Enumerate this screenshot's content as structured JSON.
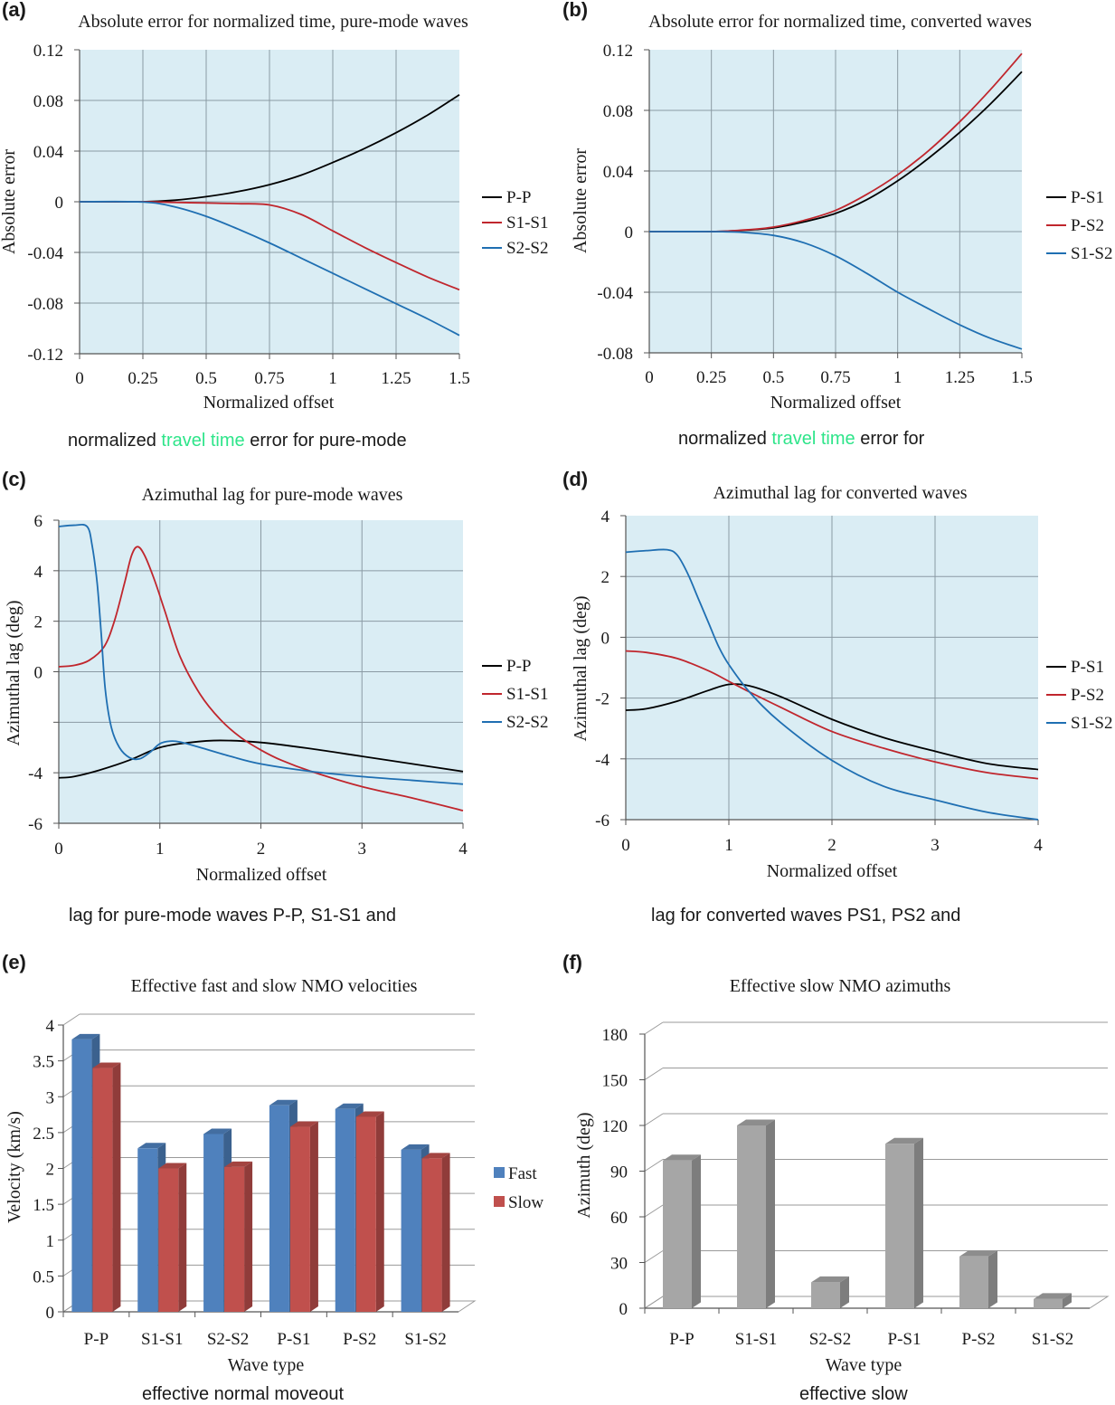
{
  "colors": {
    "plot_bg": "#daedf4",
    "grid": "#8a9aa3",
    "black_series": "#000000",
    "red_series": "#c0262d",
    "blue_series": "#1f6fb2",
    "bar_fast": "#4f81bd",
    "bar_slow": "#c0504d",
    "bar_gray": "#a6a6a6",
    "caption_highlight": "#2ee58a"
  },
  "captions": {
    "a": {
      "before": "normalized ",
      "highlight": "travel time",
      "after": " error for pure-mode"
    },
    "b": {
      "before": "normalized ",
      "highlight": "travel time",
      "after": " error for"
    },
    "c": {
      "text": "lag for pure-mode waves P-P, S1-S1 and"
    },
    "d": {
      "text": "lag for converted waves PS1, PS2 and"
    },
    "e": {
      "text": "effective normal moveout"
    },
    "f": {
      "text": "effective slow"
    }
  },
  "chart_data": [
    {
      "id": "a",
      "panel_label": "(a)",
      "type": "line",
      "title": "Absolute error for normalized time, pure-mode waves",
      "xlabel": "Normalized offset",
      "ylabel": "Absolute error",
      "xlim": [
        0,
        1.5
      ],
      "ylim": [
        -0.12,
        0.12
      ],
      "xticks": [
        "0",
        "0.25",
        "0.5",
        "0.75",
        "1",
        "1.25",
        "1.5"
      ],
      "yticks": [
        "0.12",
        "0.08",
        "0.04",
        "0",
        "-0.04",
        "-0.08",
        "-0.12"
      ],
      "grid": true,
      "legend_position": "right",
      "x": [
        0,
        0.25,
        0.375,
        0.5,
        0.625,
        0.75,
        0.875,
        1.0,
        1.125,
        1.25,
        1.375,
        1.5
      ],
      "series": [
        {
          "name": "P-P",
          "color": "#000000",
          "values": [
            0,
            0,
            0.0012,
            0.004,
            0.008,
            0.0135,
            0.021,
            0.031,
            0.042,
            0.0545,
            0.0685,
            0.0845
          ]
        },
        {
          "name": "S1-S1",
          "color": "#c0262d",
          "values": [
            0,
            0,
            -0.0005,
            -0.001,
            -0.0015,
            -0.0025,
            -0.01,
            -0.023,
            -0.036,
            -0.048,
            -0.0595,
            -0.0695
          ]
        },
        {
          "name": "S2-S2",
          "color": "#1f6fb2",
          "values": [
            0,
            -0.0002,
            -0.004,
            -0.0115,
            -0.0215,
            -0.0325,
            -0.0445,
            -0.0565,
            -0.0685,
            -0.0805,
            -0.0925,
            -0.1055
          ]
        }
      ]
    },
    {
      "id": "b",
      "panel_label": "(b)",
      "type": "line",
      "title": "Absolute error for normalized time, converted waves",
      "xlabel": "Normalized offset",
      "ylabel": "Absolute error",
      "xlim": [
        0,
        1.5
      ],
      "ylim": [
        -0.08,
        0.12
      ],
      "xticks": [
        "0",
        "0.25",
        "0.5",
        "0.75",
        "1",
        "1.25",
        "1.5"
      ],
      "yticks": [
        "0.12",
        "0.08",
        "0.04",
        "0",
        "-0.04",
        "-0.08"
      ],
      "grid": true,
      "legend_position": "right",
      "x": [
        0,
        0.25,
        0.375,
        0.5,
        0.625,
        0.75,
        0.875,
        1.0,
        1.125,
        1.25,
        1.375,
        1.5
      ],
      "series": [
        {
          "name": "P-S1",
          "color": "#000000",
          "values": [
            0,
            0,
            0.0008,
            0.0025,
            0.0065,
            0.012,
            0.021,
            0.0335,
            0.0485,
            0.0655,
            0.0845,
            0.1055
          ]
        },
        {
          "name": "P-S2",
          "color": "#c0262d",
          "values": [
            0,
            0,
            0.001,
            0.003,
            0.0075,
            0.014,
            0.0245,
            0.0375,
            0.0535,
            0.0725,
            0.094,
            0.1175
          ]
        },
        {
          "name": "S1-S2",
          "color": "#1f6fb2",
          "values": [
            0,
            0,
            -0.0005,
            -0.0025,
            -0.0075,
            -0.016,
            -0.0275,
            -0.04,
            -0.051,
            -0.0615,
            -0.0705,
            -0.0775
          ]
        }
      ]
    },
    {
      "id": "c",
      "panel_label": "(c)",
      "type": "line",
      "title": "Azimuthal lag for pure-mode waves",
      "xlabel": "Normalized offset",
      "ylabel": "Azimuthal lag (deg)",
      "xlim": [
        0,
        4
      ],
      "ylim": [
        -6,
        6
      ],
      "xticks": [
        "0",
        "1",
        "2",
        "3",
        "4"
      ],
      "yticks": [
        "6",
        "4",
        "2",
        "0",
        "",
        "-4",
        "-6"
      ],
      "grid": true,
      "legend_position": "right",
      "series": [
        {
          "name": "P-P",
          "color": "#000000",
          "x": [
            0,
            0.15,
            0.4,
            0.7,
            1.0,
            1.3,
            1.6,
            2.0,
            2.5,
            3.0,
            3.5,
            4.0
          ],
          "values": [
            -4.2,
            -4.15,
            -3.9,
            -3.5,
            -3.0,
            -2.8,
            -2.72,
            -2.8,
            -3.05,
            -3.35,
            -3.65,
            -3.95
          ]
        },
        {
          "name": "S1-S1",
          "color": "#c0262d",
          "x": [
            0,
            0.15,
            0.3,
            0.45,
            0.55,
            0.65,
            0.72,
            0.78,
            0.85,
            0.95,
            1.05,
            1.2,
            1.4,
            1.6,
            1.8,
            2.0,
            2.2,
            2.5,
            3.0,
            3.5,
            4.0
          ],
          "values": [
            0.2,
            0.25,
            0.45,
            1.0,
            2.0,
            3.5,
            4.6,
            4.95,
            4.6,
            3.6,
            2.4,
            0.6,
            -0.9,
            -1.9,
            -2.6,
            -3.1,
            -3.5,
            -3.95,
            -4.55,
            -5.0,
            -5.5
          ]
        },
        {
          "name": "S2-S2",
          "color": "#1f6fb2",
          "x": [
            0,
            0.15,
            0.28,
            0.33,
            0.38,
            0.42,
            0.46,
            0.52,
            0.6,
            0.7,
            0.8,
            0.9,
            1.0,
            1.1,
            1.2,
            1.4,
            1.7,
            2.0,
            2.5,
            3.0,
            3.5,
            4.0
          ],
          "values": [
            5.75,
            5.8,
            5.75,
            5.0,
            3.5,
            1.5,
            -0.7,
            -2.2,
            -3.0,
            -3.4,
            -3.45,
            -3.2,
            -2.85,
            -2.75,
            -2.78,
            -3.0,
            -3.35,
            -3.65,
            -3.95,
            -4.15,
            -4.3,
            -4.45
          ]
        }
      ]
    },
    {
      "id": "d",
      "panel_label": "(d)",
      "type": "line",
      "title": "Azimuthal lag for converted waves",
      "xlabel": "Normalized offset",
      "ylabel": "Azimuthal lag (deg)",
      "xlim": [
        0,
        4
      ],
      "ylim": [
        -6,
        4
      ],
      "xticks": [
        "0",
        "1",
        "2",
        "3",
        "4"
      ],
      "yticks": [
        "4",
        "2",
        "0",
        "-2",
        "-4",
        "-6"
      ],
      "grid": true,
      "legend_position": "right",
      "series": [
        {
          "name": "P-S1",
          "color": "#000000",
          "x": [
            0,
            0.2,
            0.5,
            0.8,
            1.0,
            1.2,
            1.5,
            2.0,
            2.5,
            3.0,
            3.5,
            4.0
          ],
          "values": [
            -2.4,
            -2.35,
            -2.1,
            -1.75,
            -1.55,
            -1.6,
            -1.95,
            -2.7,
            -3.3,
            -3.75,
            -4.15,
            -4.35
          ]
        },
        {
          "name": "P-S2",
          "color": "#c0262d",
          "x": [
            0,
            0.2,
            0.5,
            0.8,
            1.0,
            1.2,
            1.5,
            2.0,
            2.5,
            3.0,
            3.5,
            4.0
          ],
          "values": [
            -0.45,
            -0.5,
            -0.7,
            -1.1,
            -1.45,
            -1.8,
            -2.3,
            -3.1,
            -3.65,
            -4.1,
            -4.45,
            -4.65
          ]
        },
        {
          "name": "S1-S2",
          "color": "#1f6fb2",
          "x": [
            0,
            0.2,
            0.4,
            0.5,
            0.6,
            0.7,
            0.8,
            0.9,
            1.0,
            1.2,
            1.5,
            2.0,
            2.5,
            3.0,
            3.5,
            4.0
          ],
          "values": [
            2.8,
            2.85,
            2.88,
            2.7,
            2.1,
            1.3,
            0.5,
            -0.3,
            -0.9,
            -1.8,
            -2.8,
            -4.05,
            -4.9,
            -5.35,
            -5.75,
            -6.0
          ]
        }
      ]
    },
    {
      "id": "e",
      "panel_label": "(e)",
      "type": "bar",
      "title": "Effective fast and slow NMO velocities",
      "xlabel": "Wave type",
      "ylabel": "Velocity (km/s)",
      "ylim": [
        0,
        4
      ],
      "yticks": [
        "4",
        "3.5",
        "3",
        "2.5",
        "2",
        "1.5",
        "1",
        "0.5",
        "0"
      ],
      "categories": [
        "P-P",
        "S1-S1",
        "S2-S2",
        "P-S1",
        "P-S2",
        "S1-S2"
      ],
      "grid": true,
      "legend_position": "right",
      "series": [
        {
          "name": "Fast",
          "color": "#4f81bd",
          "values": [
            3.8,
            2.28,
            2.48,
            2.88,
            2.83,
            2.26
          ]
        },
        {
          "name": "Slow",
          "color": "#c0504d",
          "values": [
            3.4,
            2.0,
            2.02,
            2.58,
            2.72,
            2.14
          ]
        }
      ]
    },
    {
      "id": "f",
      "panel_label": "(f)",
      "type": "bar",
      "title": "Effective slow NMO azimuths",
      "xlabel": "Wave type",
      "ylabel": "Azimuth (deg)",
      "ylim": [
        0,
        180
      ],
      "yticks": [
        "180",
        "150",
        "120",
        "90",
        "60",
        "30",
        "0"
      ],
      "categories": [
        "P-P",
        "S1-S1",
        "S2-S2",
        "P-S1",
        "P-S2",
        "S1-S2"
      ],
      "grid": true,
      "series": [
        {
          "color": "#a6a6a6",
          "values": [
            97,
            120,
            17,
            108,
            34,
            6
          ]
        }
      ]
    }
  ]
}
